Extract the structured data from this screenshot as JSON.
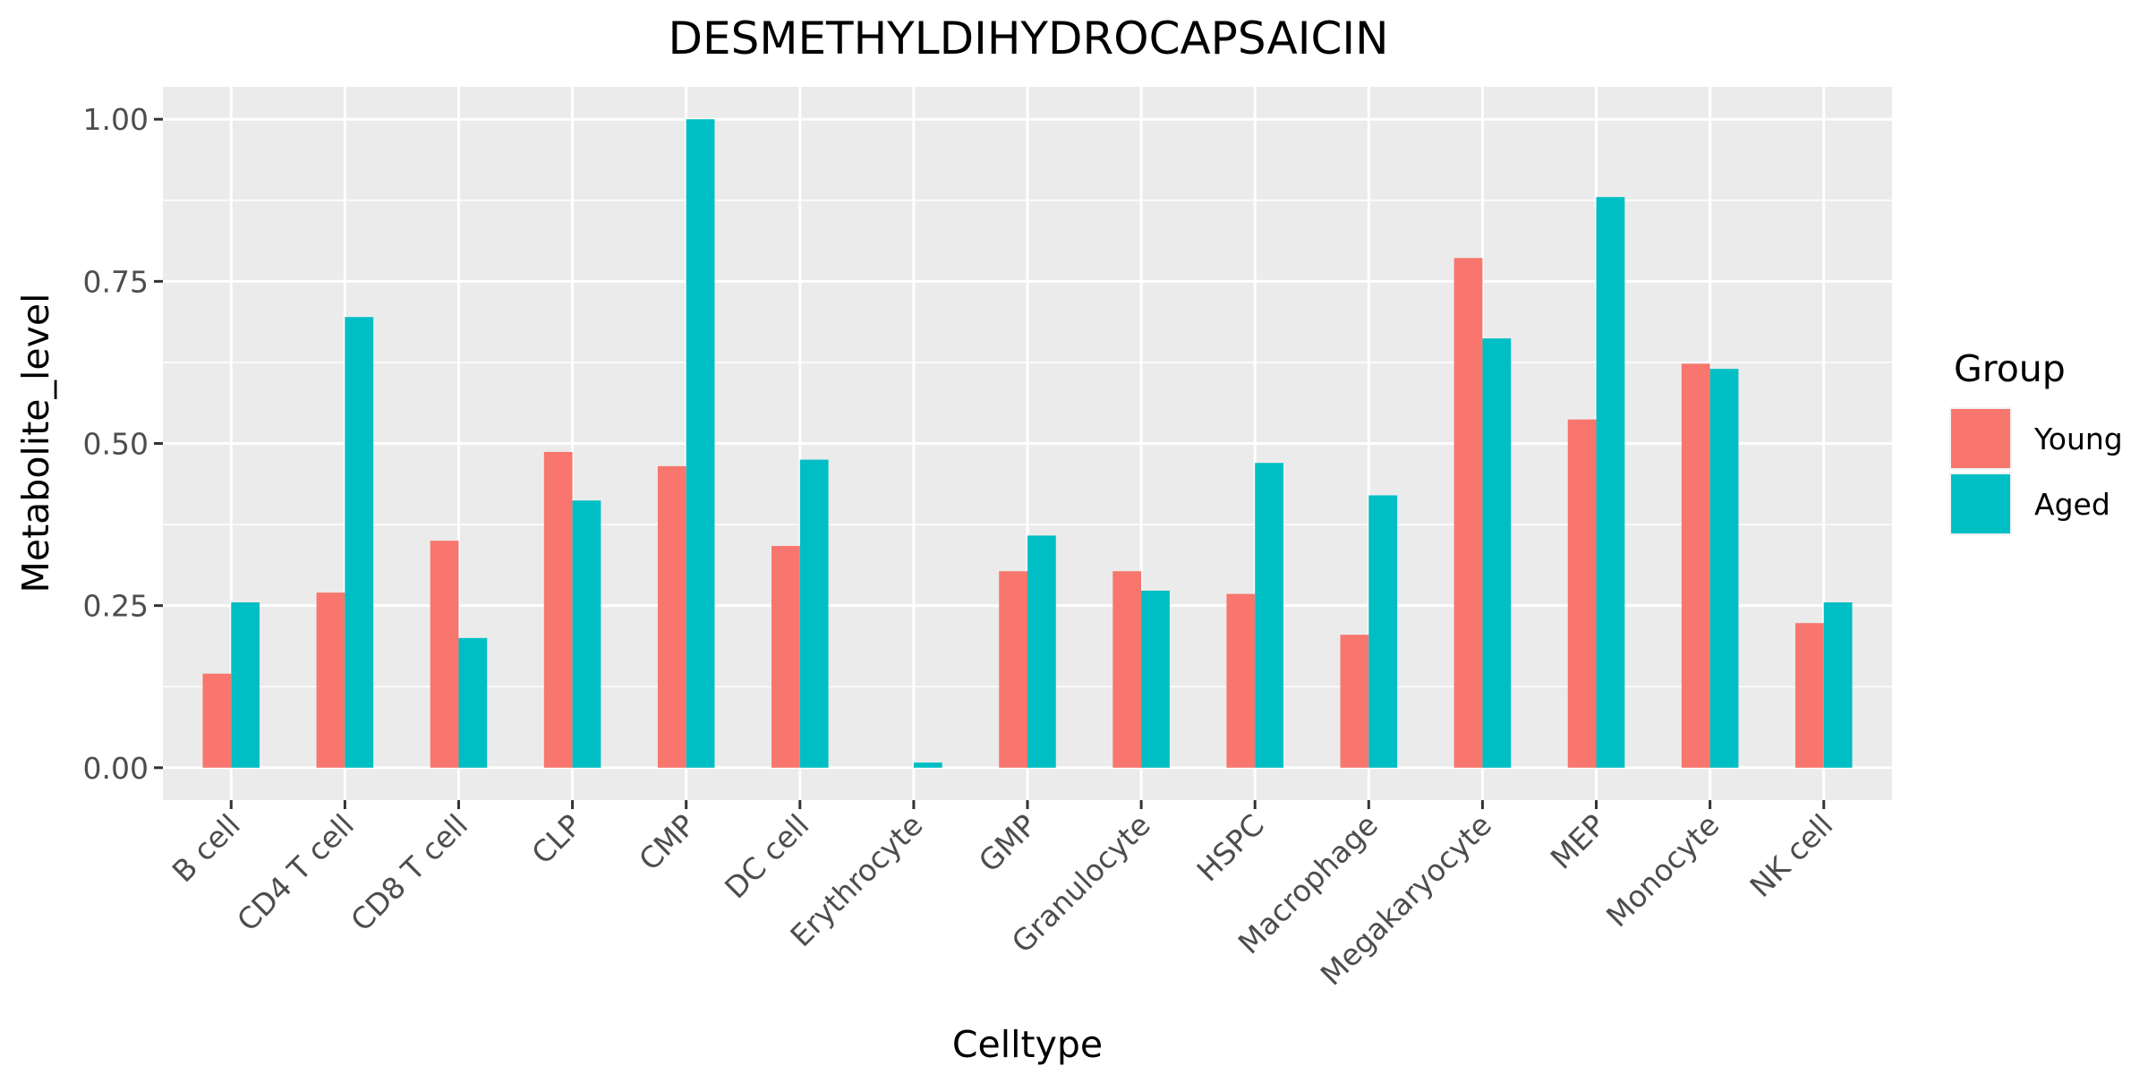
{
  "chart_data": {
    "type": "bar",
    "title": "DESMETHYLDIHYDROCAPSAICIN",
    "xlabel": "Celltype",
    "ylabel": "Metabolite_level",
    "categories": [
      "B cell",
      "CD4 T cell",
      "CD8 T cell",
      "CLP",
      "CMP",
      "DC cell",
      "Erythrocyte",
      "GMP",
      "Granulocyte",
      "HSPC",
      "Macrophage",
      "Megakaryocyte",
      "MEP",
      "Monocyte",
      "NK cell"
    ],
    "series": [
      {
        "name": "Young",
        "color": "#F8766D",
        "values": [
          0.145,
          0.27,
          0.35,
          0.487,
          0.465,
          0.342,
          0.0,
          0.303,
          0.303,
          0.268,
          0.205,
          0.786,
          0.537,
          0.623,
          0.223
        ]
      },
      {
        "name": "Aged",
        "color": "#00BFC4",
        "values": [
          0.255,
          0.695,
          0.2,
          0.412,
          1.0,
          0.475,
          0.008,
          0.358,
          0.273,
          0.47,
          0.42,
          0.662,
          0.88,
          0.615,
          0.255
        ]
      }
    ],
    "ylim": [
      -0.05,
      1.05
    ],
    "yticks": [
      0.0,
      0.25,
      0.5,
      0.75,
      1.0
    ],
    "ytick_labels": [
      "0.00",
      "0.25",
      "0.50",
      "0.75",
      "1.00"
    ],
    "grid": true,
    "legend": {
      "title": "Group",
      "position": "right"
    }
  }
}
